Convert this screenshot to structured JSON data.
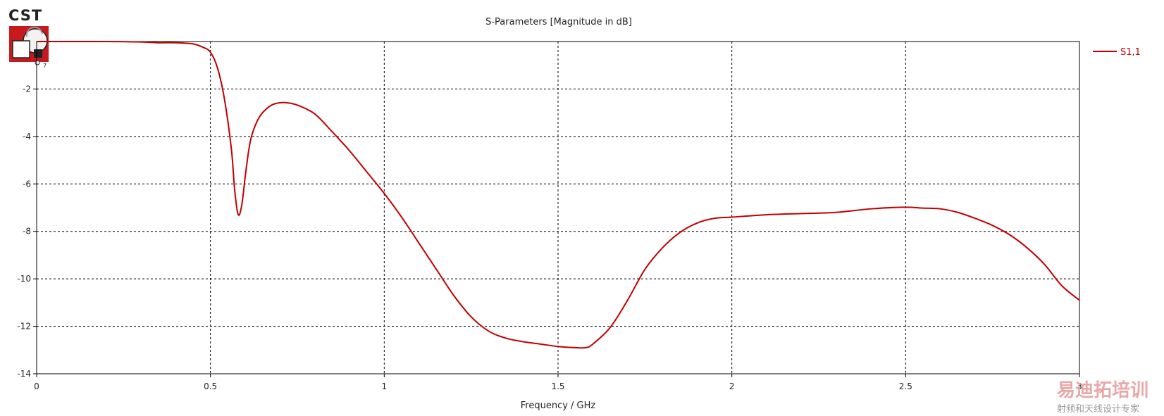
{
  "app": {
    "logo_text": "CST"
  },
  "watermark": {
    "line1": "易迪拓培训",
    "line2": "射频和天线设计专家"
  },
  "chart_data": {
    "type": "line",
    "title": "S-Parameters [Magnitude in dB]",
    "xlabel": "Frequency / GHz",
    "ylabel": "",
    "xlim": [
      0,
      3
    ],
    "ylim": [
      -14,
      0
    ],
    "xticks": [
      "0",
      "0.5",
      "1",
      "1.5",
      "2",
      "2.5",
      "3"
    ],
    "yticks": [
      "-14",
      "-12",
      "-10",
      "-8",
      "-6",
      "-4",
      "-2"
    ],
    "grid": true,
    "legend_position": "right",
    "series": [
      {
        "name": "S1,1",
        "color": "#c00000",
        "x": [
          0,
          0.1,
          0.2,
          0.3,
          0.35,
          0.4,
          0.45,
          0.48,
          0.5,
          0.52,
          0.54,
          0.56,
          0.57,
          0.58,
          0.59,
          0.6,
          0.61,
          0.62,
          0.64,
          0.66,
          0.68,
          0.7,
          0.72,
          0.75,
          0.8,
          0.85,
          0.9,
          0.95,
          1.0,
          1.05,
          1.1,
          1.15,
          1.2,
          1.25,
          1.3,
          1.35,
          1.4,
          1.45,
          1.5,
          1.55,
          1.58,
          1.6,
          1.65,
          1.7,
          1.75,
          1.8,
          1.85,
          1.9,
          1.95,
          2.0,
          2.1,
          2.2,
          2.3,
          2.4,
          2.5,
          2.55,
          2.6,
          2.65,
          2.7,
          2.75,
          2.8,
          2.85,
          2.9,
          2.95,
          3.0
        ],
        "y": [
          0,
          0,
          0,
          -0.02,
          -0.05,
          -0.05,
          -0.1,
          -0.25,
          -0.45,
          -1.1,
          -2.4,
          -4.5,
          -6.3,
          -7.3,
          -6.9,
          -5.7,
          -4.6,
          -3.9,
          -3.2,
          -2.85,
          -2.65,
          -2.58,
          -2.58,
          -2.68,
          -3.05,
          -3.8,
          -4.6,
          -5.5,
          -6.4,
          -7.4,
          -8.5,
          -9.6,
          -10.7,
          -11.6,
          -12.2,
          -12.5,
          -12.65,
          -12.75,
          -12.85,
          -12.9,
          -12.9,
          -12.75,
          -12.05,
          -10.9,
          -9.6,
          -8.7,
          -8.05,
          -7.65,
          -7.45,
          -7.4,
          -7.3,
          -7.25,
          -7.2,
          -7.05,
          -6.98,
          -7.02,
          -7.05,
          -7.2,
          -7.45,
          -7.75,
          -8.15,
          -8.7,
          -9.4,
          -10.3,
          -10.9
        ]
      }
    ]
  }
}
